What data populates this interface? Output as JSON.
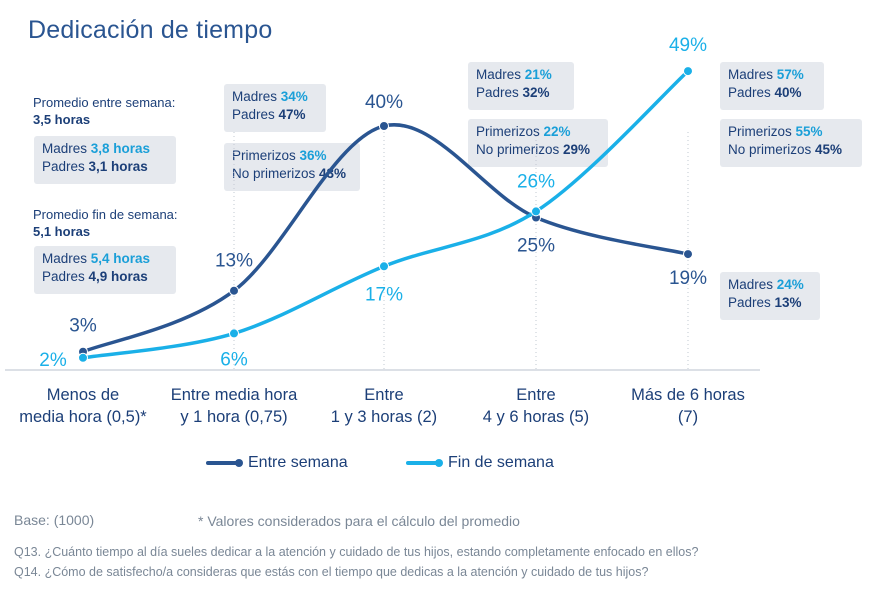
{
  "title": "Dedicación de tiempo",
  "side": {
    "weekday_label": "Promedio entre semana:",
    "weekday_value": "3,5 horas",
    "weekend_label": "Promedio fin de semana:",
    "weekend_value": "5,1 horas"
  },
  "boxes": [
    {
      "rows": [
        {
          "label": "Madres ",
          "value": "3,8 horas",
          "tone": "light"
        },
        {
          "label": "Padres ",
          "value": "3,1 horas",
          "tone": "dark"
        }
      ]
    },
    {
      "rows": [
        {
          "label": "Madres ",
          "value": "5,4 horas",
          "tone": "light"
        },
        {
          "label": "Padres ",
          "value": "4,9 horas",
          "tone": "dark"
        }
      ]
    },
    {
      "rows": [
        {
          "label": "Madres ",
          "value": "34%",
          "tone": "light"
        },
        {
          "label": "Padres ",
          "value": "47%",
          "tone": "dark"
        }
      ]
    },
    {
      "rows": [
        {
          "label": "Primerizos ",
          "value": "36%",
          "tone": "light"
        },
        {
          "label": "No primerizos ",
          "value": "43%",
          "tone": "dark"
        }
      ]
    },
    {
      "rows": [
        {
          "label": "Madres ",
          "value": "21%",
          "tone": "light"
        },
        {
          "label": "Padres ",
          "value": "32%",
          "tone": "dark"
        }
      ]
    },
    {
      "rows": [
        {
          "label": "Primerizos ",
          "value": "22%",
          "tone": "light"
        },
        {
          "label": "No primerizos ",
          "value": "29%",
          "tone": "dark"
        }
      ]
    },
    {
      "rows": [
        {
          "label": "Madres ",
          "value": "57%",
          "tone": "light"
        },
        {
          "label": "Padres ",
          "value": "40%",
          "tone": "dark"
        }
      ]
    },
    {
      "rows": [
        {
          "label": "Primerizos ",
          "value": "55%",
          "tone": "light"
        },
        {
          "label": "No primerizos ",
          "value": "45%",
          "tone": "dark"
        }
      ]
    },
    {
      "rows": [
        {
          "label": "Madres ",
          "value": "24%",
          "tone": "light"
        },
        {
          "label": "Padres ",
          "value": "13%",
          "tone": "dark"
        }
      ]
    }
  ],
  "chart_data": {
    "type": "line",
    "categories": [
      [
        "Menos de",
        "media hora (0,5)*"
      ],
      [
        "Entre media hora",
        "y 1 hora (0,75)"
      ],
      [
        "Entre",
        "1 y 3 horas (2)"
      ],
      [
        "Entre",
        "4 y 6 horas (5)"
      ],
      [
        "Más de 6 horas",
        "(7)"
      ]
    ],
    "series": [
      {
        "name": "Entre semana",
        "values": [
          3,
          13,
          40,
          25,
          19
        ],
        "labels": [
          "3%",
          "13%",
          "40%",
          "25%",
          "19%"
        ],
        "color": "#2a5591"
      },
      {
        "name": "Fin de semana",
        "values": [
          2,
          6,
          17,
          26,
          49
        ],
        "labels": [
          "2%",
          "6%",
          "17%",
          "26%",
          "49%"
        ],
        "color": "#1ab0e8"
      }
    ],
    "ylim": [
      0,
      50
    ],
    "grid": false,
    "legend_position": "bottom"
  },
  "footer": {
    "base": "Base: (1000)",
    "note": "* Valores considerados para el cálculo del promedio",
    "q13": "Q13. ¿Cuánto tiempo al día sueles dedicar a la atención y cuidado de tus hijos, estando completamente enfocado en ellos?",
    "q14": "Q14. ¿Cómo de satisfecho/a consideras que estás con el tiempo que dedicas a la atención y cuidado de tus hijos?"
  }
}
